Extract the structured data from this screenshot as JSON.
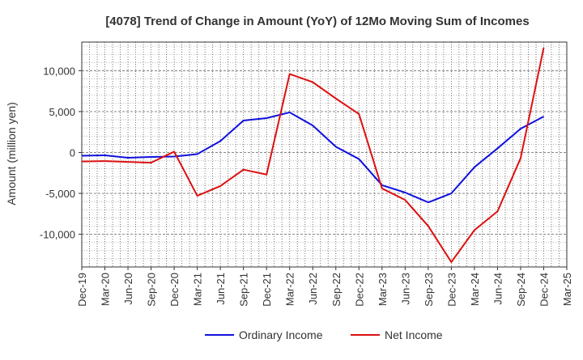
{
  "chart_data": {
    "type": "line",
    "title": "[4078]  Trend of Change in Amount (YoY) of 12Mo Moving Sum of Incomes",
    "xlabel": "",
    "ylabel": "Amount (million yen)",
    "categories": [
      "Dec-19",
      "Mar-20",
      "Jun-20",
      "Sep-20",
      "Dec-20",
      "Mar-21",
      "Jun-21",
      "Sep-21",
      "Dec-21",
      "Mar-22",
      "Jun-22",
      "Sep-22",
      "Dec-22",
      "Mar-23",
      "Jun-23",
      "Sep-23",
      "Dec-23",
      "Mar-24",
      "Jun-24",
      "Sep-24",
      "Dec-24",
      "Mar-25"
    ],
    "y_ticks": [
      10000,
      5000,
      0,
      -5000,
      -10000
    ],
    "y_tick_labels": [
      "10,000",
      "5,000",
      "0",
      "-5,000",
      "-10,000"
    ],
    "ylim": [
      -14000,
      13500
    ],
    "grid": true,
    "legend_position": "bottom",
    "series": [
      {
        "name": "Ordinary Income",
        "color": "#1010dd",
        "values": [
          -400,
          -350,
          -650,
          -550,
          -500,
          -200,
          1400,
          3900,
          4200,
          4900,
          3300,
          700,
          -800,
          -4000,
          -4900,
          -6100,
          -5000,
          -1800,
          500,
          2900,
          4400,
          null
        ]
      },
      {
        "name": "Net Income",
        "color": "#dd1010",
        "values": [
          -1100,
          -1050,
          -1150,
          -1250,
          100,
          -5300,
          -4100,
          -2100,
          -2700,
          9600,
          8600,
          6600,
          4700,
          -4400,
          -5800,
          -9000,
          -13400,
          -9500,
          -7200,
          -700,
          12800,
          null
        ]
      }
    ]
  }
}
